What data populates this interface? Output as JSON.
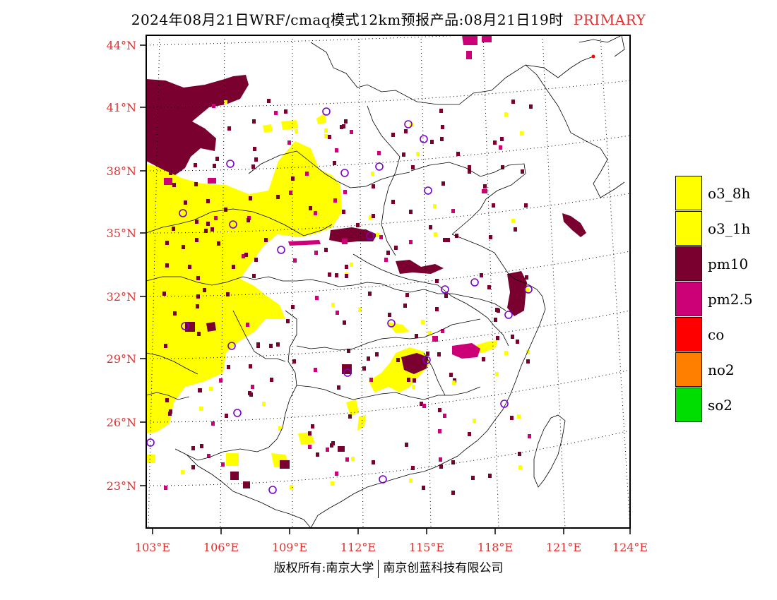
{
  "title": {
    "text": "2024年08月21日WRF/cmaq模式12km预报产品:08月21日19时",
    "tag": "PRIMARY"
  },
  "axes": {
    "lat_labels": [
      "44°N",
      "41°N",
      "38°N",
      "35°N",
      "32°N",
      "29°N",
      "26°N",
      "23°N"
    ],
    "lon_labels": [
      "103°E",
      "106°E",
      "109°E",
      "112°E",
      "115°E",
      "118°E",
      "121°E",
      "124°E"
    ]
  },
  "legend": {
    "items": [
      {
        "label": "o3_8h",
        "color": "#ffff00"
      },
      {
        "label": "o3_1h",
        "color": "#ffff00"
      },
      {
        "label": "pm10",
        "color": "#7a0030"
      },
      {
        "label": "pm2.5",
        "color": "#cc0077"
      },
      {
        "label": "co",
        "color": "#ff0000"
      },
      {
        "label": "no2",
        "color": "#ff7f00"
      },
      {
        "label": "so2",
        "color": "#00dd00"
      }
    ]
  },
  "footer": {
    "left": "版权所有:南京大学",
    "right": "南京创蓝科技有限公司"
  }
}
